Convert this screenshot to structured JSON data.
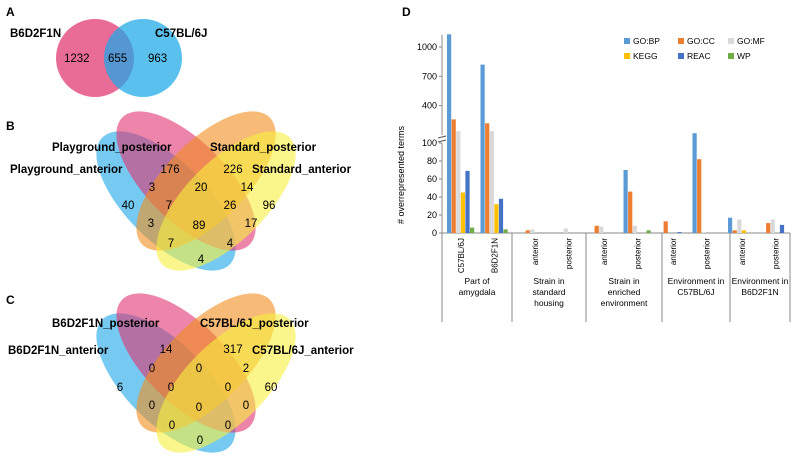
{
  "panels": {
    "a": "A",
    "b": "B",
    "c": "C",
    "d": "D"
  },
  "colors": {
    "pink": "#e0336f",
    "blue": "#1aa7e8",
    "orange": "#f28d1c",
    "yellow": "#f8f040",
    "green": "#62c04a",
    "purple": "#7a3b8f"
  },
  "venn_a": {
    "left_label": "B6D2F1N",
    "right_label": "C57BL/6J",
    "left_only": "1232",
    "overlap": "655",
    "right_only": "963"
  },
  "venn_b": {
    "labels": {
      "top_left": "Playground_posterior",
      "top_right": "Standard_posterior",
      "left": "Playground_anterior",
      "right": "Standard_anterior"
    },
    "regions": {
      "blue_only": "40",
      "pink_only": "176",
      "orange_only": "226",
      "yellow_only": "96",
      "bp": "3",
      "po": "20",
      "oy": "14",
      "bo": "3",
      "center_top": "7",
      "pink_orange_yellow": "26",
      "center": "89",
      "py": "17",
      "bottom_left": "7",
      "bottom_right": "4",
      "bottom": "4"
    }
  },
  "venn_c": {
    "labels": {
      "top_left": "B6D2F1N_posterior",
      "top_right": "C57BL/6J_posterior",
      "left": "B6D2F1N_anterior",
      "right": "C57BL/6J_anterior"
    },
    "regions": {
      "blue_only": "6",
      "pink_only": "14",
      "orange_only": "317",
      "yellow_only": "60",
      "bp": "0",
      "po": "0",
      "oy": "2",
      "bo": "0",
      "center_top": "0",
      "pink_orange_yellow": "0",
      "center": "0",
      "py": "0",
      "bottom_left": "0",
      "bottom_right": "0",
      "bottom": "0"
    }
  },
  "chart_data": {
    "type": "bar",
    "ylabel": "# overrepresented terms",
    "yticks_lower": [
      0,
      20,
      40,
      60,
      80,
      100
    ],
    "yticks_upper": [
      100,
      400,
      700,
      1000
    ],
    "legend_position": "top-right",
    "series": [
      {
        "name": "GO:BP",
        "color": "#5b9bd5",
        "values": [
          1130,
          820,
          0,
          0,
          0,
          70,
          0,
          118,
          17,
          0
        ]
      },
      {
        "name": "GO:CC",
        "color": "#ed7d31",
        "values": [
          260,
          220,
          3,
          0,
          8,
          46,
          13,
          82,
          3,
          11
        ]
      },
      {
        "name": "GO:MF",
        "color": "#d9d9d9",
        "values": [
          140,
          140,
          4,
          5,
          7,
          8,
          0,
          1,
          15,
          15
        ]
      },
      {
        "name": "KEGG",
        "color": "#ffc000",
        "values": [
          45,
          32,
          0,
          0,
          0,
          0,
          0,
          0,
          3,
          0
        ]
      },
      {
        "name": "REAC",
        "color": "#4472c4",
        "values": [
          69,
          38,
          0,
          0,
          0,
          0,
          1,
          0,
          0,
          9
        ]
      },
      {
        "name": "WP",
        "color": "#70ad47",
        "values": [
          6,
          4,
          0,
          0,
          0,
          3,
          0,
          0,
          0,
          0
        ]
      }
    ],
    "categories": [
      "C57BL/6J",
      "B6D2F1N",
      "anterior",
      "posterior",
      "anterior",
      "posterior",
      "anterior",
      "posterior",
      "anterior",
      "posterior"
    ],
    "groups": [
      {
        "lines": [
          "Part of",
          "amygdala"
        ]
      },
      {
        "lines": [
          "Strain in",
          "standard",
          "housing"
        ]
      },
      {
        "lines": [
          "Strain in",
          "enriched",
          "environment"
        ]
      },
      {
        "lines": [
          "Environment in",
          "C57BL/6J"
        ]
      },
      {
        "lines": [
          "Environment in",
          "B6D2F1N"
        ]
      }
    ]
  }
}
